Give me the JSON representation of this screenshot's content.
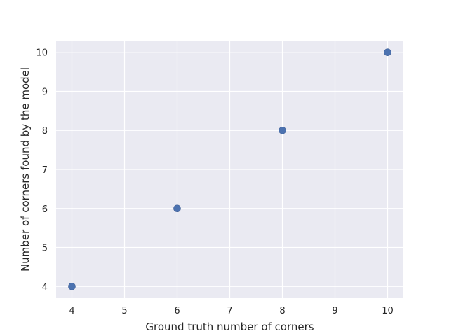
{
  "chart_data": {
    "type": "scatter",
    "title": "",
    "xlabel": "Ground truth number of corners",
    "ylabel": "Number of corners found by the model",
    "xlim": [
      3.7,
      10.3
    ],
    "ylim": [
      3.7,
      10.3
    ],
    "xticks": [
      4,
      5,
      6,
      7,
      8,
      9,
      10
    ],
    "yticks": [
      4,
      5,
      6,
      7,
      8,
      9,
      10
    ],
    "grid": true,
    "legend": "none",
    "series": [
      {
        "color": "#4c72b0",
        "points": [
          {
            "x": 4,
            "y": 4
          },
          {
            "x": 6,
            "y": 6
          },
          {
            "x": 8,
            "y": 8
          },
          {
            "x": 10,
            "y": 10
          }
        ]
      }
    ]
  }
}
